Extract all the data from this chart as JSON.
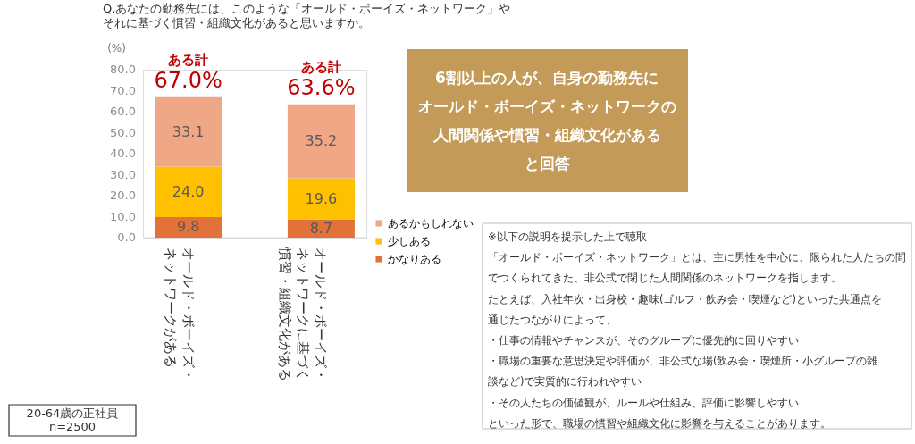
{
  "chart_data": {
    "type": "bar",
    "stacked": true,
    "title": "Q.あなたの勤務先には、このような「オールド・ボーイズ・ネットワーク」やそれに基づく慣習・組織文化があると思いますか。",
    "ylabel": "(%)",
    "categories": [
      "オールド・ボーイズ・ネットワークがある",
      "オールド・ボーイズ・ネットワークに基づく慣習・組織文化がある"
    ],
    "series": [
      {
        "name": "かなりある",
        "color": "#e2713a",
        "values": [
          9.8,
          8.7
        ],
        "value_labels": [
          "9.8",
          "8.7"
        ]
      },
      {
        "name": "少しある",
        "color": "#ffc000",
        "values": [
          24.0,
          19.6
        ],
        "value_labels": [
          "24.0",
          "19.6"
        ]
      },
      {
        "name": "あるかもしれない",
        "color": "#f0a786",
        "values": [
          33.1,
          35.2
        ],
        "value_labels": [
          "33.1",
          "35.2"
        ]
      }
    ],
    "ylim": [
      0,
      80
    ],
    "yticks": [
      {
        "value": 0,
        "label": "0.0"
      },
      {
        "value": 10,
        "label": "10.0"
      },
      {
        "value": 20,
        "label": "20.0"
      },
      {
        "value": 30,
        "label": "30.0"
      },
      {
        "value": 40,
        "label": "40.0"
      },
      {
        "value": 50,
        "label": "50.0"
      },
      {
        "value": 60,
        "label": "60.0"
      },
      {
        "value": 70,
        "label": "70.0"
      },
      {
        "value": 80,
        "label": "80.0"
      }
    ],
    "totals": [
      "67.0%",
      "63.6%"
    ],
    "legend": "right",
    "grid": false,
    "annotations": [
      {
        "text": "ある計",
        "x": "オールド・ボーイズ・ネットワークがある",
        "y": 67.0
      },
      {
        "text": "ある計",
        "x": "オールド・ボーイズ・ネットワークに基づく慣習・組織文化がある",
        "y": 63.6
      },
      "6割以上の人が、自身の勤務先にオールド・ボーイズ・ネットワークの人間関係や慣習・組織文化があると回答",
      "※以下の説明を提示した上で聴取",
      "「オールド・ボーイズ・ネットワーク」とは、主に男性を中心に、限られた人たちの間でつくられてきた、非公式で閉じた人間関係のネットワークを指します。",
      "たとえば、入社年次・出身校・趣味(ゴルフ・飲み会・喫煙など)といった共通点を通じたつながりによって、",
      "　・仕事の情報やチャンスが、そのグループに優先的に回りやすい",
      "　・職場の重要な意思決定や評価が、非公式な場(飲み会・喫煙所・小グループの雑談など)で実質的に行われやすい",
      "　・その人たちの価値観が、ルールや仕組み、評価に影響しやすい",
      "といった形で、職場の慣習や組織文化に影響を与えることがあります。",
      "20-64歳の正社員",
      "n=2500"
    ]
  }
}
